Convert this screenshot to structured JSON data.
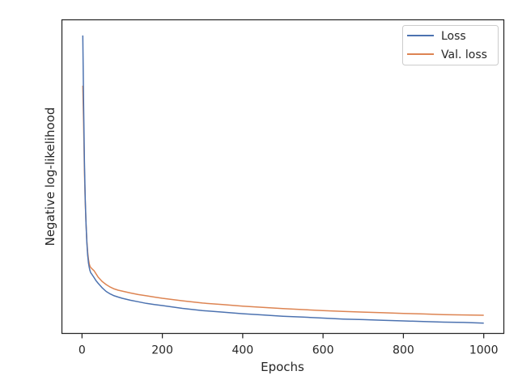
{
  "chart_data": {
    "type": "line",
    "title": "",
    "xlabel": "Epochs",
    "ylabel": "Negative log-likelihood",
    "xlim": [
      -50,
      1050
    ],
    "ylim": [
      0,
      100
    ],
    "x_ticks": [
      0,
      200,
      400,
      600,
      800,
      1000
    ],
    "x_tick_labels": [
      "0",
      "200",
      "400",
      "600",
      "800",
      "1000"
    ],
    "y_ticks_shown": false,
    "grid": false,
    "legend_position": "top-right",
    "series": [
      {
        "name": "Loss",
        "color": "#4c72b0",
        "x": [
          2,
          4,
          6,
          8,
          10,
          12,
          14,
          16,
          18,
          20,
          22,
          25,
          30,
          35,
          40,
          50,
          60,
          70,
          80,
          90,
          100,
          120,
          140,
          160,
          180,
          200,
          250,
          300,
          350,
          400,
          450,
          500,
          550,
          600,
          650,
          700,
          750,
          800,
          850,
          900,
          950,
          1000
        ],
        "y": [
          95.0,
          73.0,
          55.0,
          43.0,
          35.0,
          29.0,
          25.0,
          22.5,
          21.0,
          20.0,
          19.3,
          18.8,
          17.8,
          16.8,
          16.0,
          14.6,
          13.4,
          12.6,
          12.0,
          11.6,
          11.2,
          10.6,
          10.1,
          9.6,
          9.2,
          8.9,
          8.0,
          7.3,
          6.8,
          6.3,
          5.9,
          5.5,
          5.2,
          4.9,
          4.6,
          4.4,
          4.2,
          4.0,
          3.8,
          3.6,
          3.5,
          3.3
        ]
      },
      {
        "name": "Val. loss",
        "color": "#dd8452",
        "x": [
          2,
          4,
          6,
          8,
          10,
          12,
          14,
          16,
          18,
          20,
          22,
          25,
          30,
          35,
          40,
          50,
          60,
          70,
          80,
          90,
          100,
          120,
          140,
          160,
          180,
          200,
          250,
          300,
          350,
          400,
          450,
          500,
          550,
          600,
          650,
          700,
          750,
          800,
          850,
          900,
          950,
          1000
        ],
        "y": [
          79.0,
          67.0,
          52.0,
          42.0,
          35.0,
          29.5,
          26.0,
          23.6,
          22.2,
          21.4,
          21.0,
          20.6,
          20.0,
          19.0,
          18.0,
          16.6,
          15.6,
          14.8,
          14.2,
          13.8,
          13.5,
          12.9,
          12.4,
          12.0,
          11.6,
          11.2,
          10.4,
          9.7,
          9.2,
          8.7,
          8.3,
          7.9,
          7.6,
          7.3,
          7.0,
          6.8,
          6.6,
          6.4,
          6.2,
          6.0,
          5.9,
          5.8
        ]
      }
    ]
  }
}
